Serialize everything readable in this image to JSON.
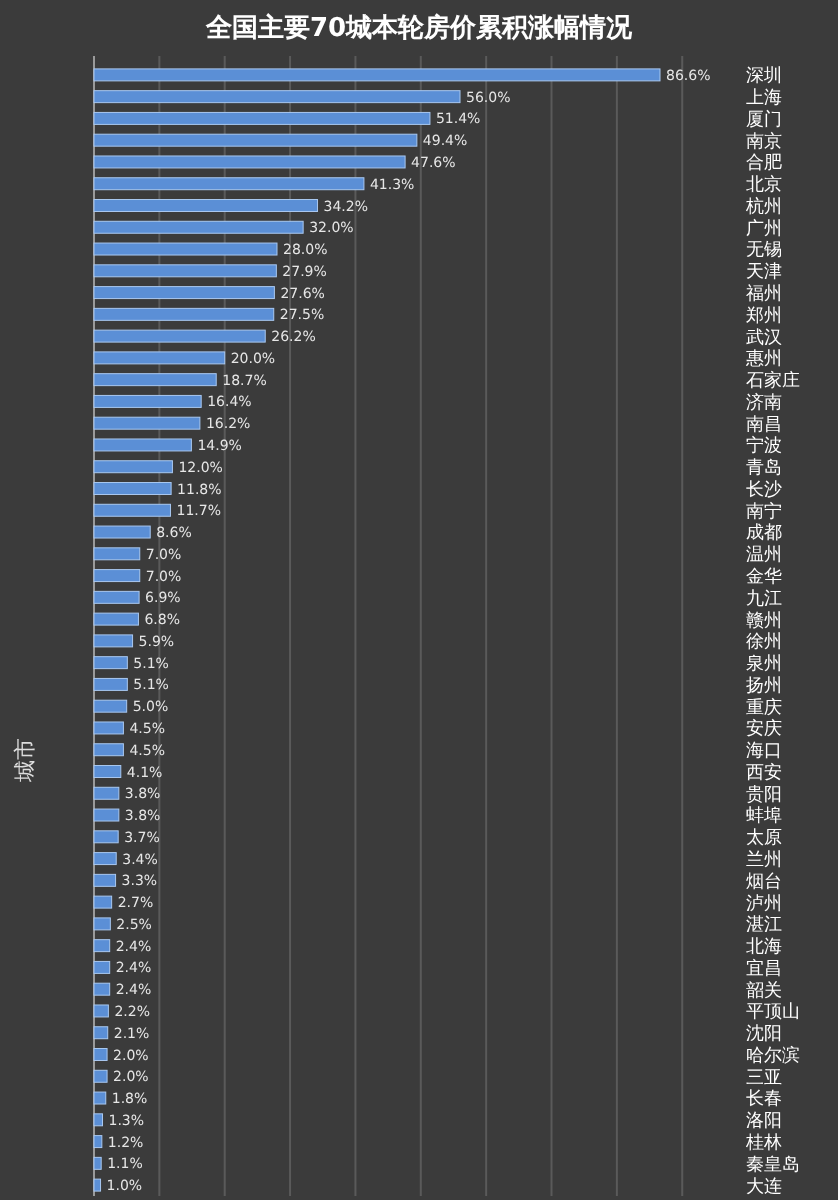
{
  "chart_data": {
    "type": "bar",
    "orientation": "horizontal",
    "title": "全国主要70城本轮房价累积涨幅情况",
    "ylabel": "城市",
    "categories": [
      "深圳",
      "上海",
      "厦门",
      "南京",
      "合肥",
      "北京",
      "杭州",
      "广州",
      "无锡",
      "天津",
      "福州",
      "郑州",
      "武汉",
      "惠州",
      "石家庄",
      "济南",
      "南昌",
      "宁波",
      "青岛",
      "长沙",
      "南宁",
      "成都",
      "温州",
      "金华",
      "九江",
      "赣州",
      "徐州",
      "泉州",
      "扬州",
      "重庆",
      "安庆",
      "海口",
      "西安",
      "贵阳",
      "蚌埠",
      "太原",
      "兰州",
      "烟台",
      "泸州",
      "湛江",
      "北海",
      "宜昌",
      "韶关",
      "平顶山",
      "沈阳",
      "哈尔滨",
      "三亚",
      "长春",
      "洛阳",
      "桂林",
      "秦皇岛",
      "大连"
    ],
    "values": [
      86.6,
      56.0,
      51.4,
      49.4,
      47.6,
      41.3,
      34.2,
      32.0,
      28.0,
      27.9,
      27.6,
      27.5,
      26.2,
      20.0,
      18.7,
      16.4,
      16.2,
      14.9,
      12.0,
      11.8,
      11.7,
      8.6,
      7.0,
      7.0,
      6.9,
      6.8,
      5.9,
      5.1,
      5.1,
      5.0,
      4.5,
      4.5,
      4.1,
      3.8,
      3.8,
      3.7,
      3.4,
      3.3,
      2.7,
      2.5,
      2.4,
      2.4,
      2.4,
      2.2,
      2.1,
      2.0,
      2.0,
      1.8,
      1.3,
      1.2,
      1.1,
      1.0
    ],
    "value_labels": [
      "86.6%",
      "56.0%",
      "51.4%",
      "49.4%",
      "47.6%",
      "41.3%",
      "34.2%",
      "32.0%",
      "28.0%",
      "27.9%",
      "27.6%",
      "27.5%",
      "26.2%",
      "20.0%",
      "18.7%",
      "16.4%",
      "16.2%",
      "14.9%",
      "12.0%",
      "11.8%",
      "11.7%",
      "8.6%",
      "7.0%",
      "7.0%",
      "6.9%",
      "6.8%",
      "5.9%",
      "5.1%",
      "5.1%",
      "5.0%",
      "4.5%",
      "4.5%",
      "4.1%",
      "3.8%",
      "3.8%",
      "3.7%",
      "3.4%",
      "3.3%",
      "2.7%",
      "2.5%",
      "2.4%",
      "2.4%",
      "2.4%",
      "2.2%",
      "2.1%",
      "2.0%",
      "2.0%",
      "1.8%",
      "1.3%",
      "1.2%",
      "1.1%",
      "1.0%"
    ],
    "color": "#5b8fd6",
    "grid": "x"
  }
}
